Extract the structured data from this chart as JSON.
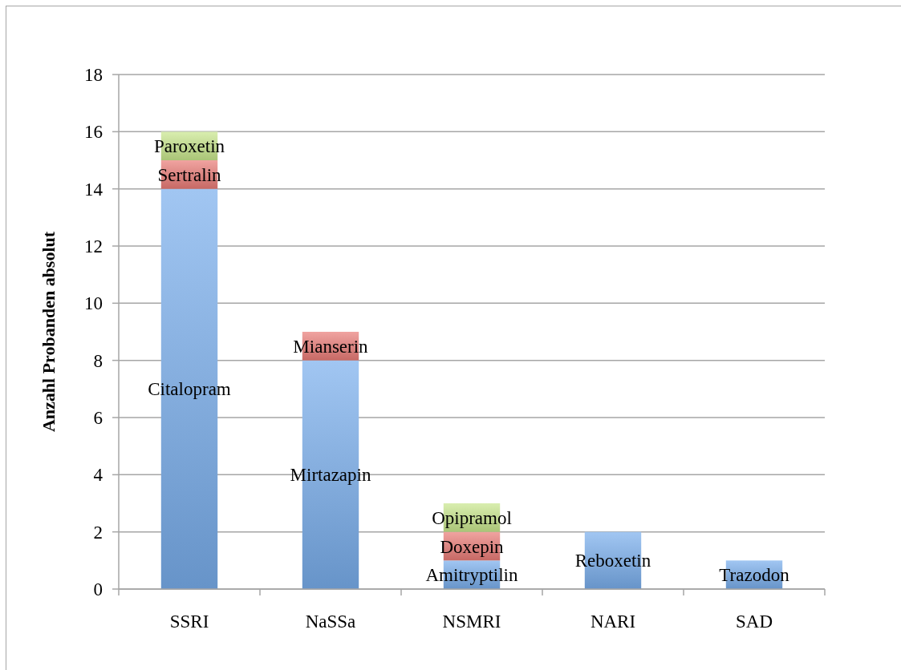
{
  "chart_data": {
    "type": "bar",
    "stacked": true,
    "ylabel": "Anzahl Probanden absolut",
    "categories": [
      "SSRI",
      "NaSSa",
      "NSMRI",
      "NARI",
      "SAD"
    ],
    "series": [
      {
        "color": "#79aeed",
        "values": [
          14,
          8,
          1,
          2,
          1
        ],
        "value_labels": [
          "Citalopram",
          "Mirtazapin",
          "Amitryptilin",
          "Reboxetin",
          "Trazodon"
        ]
      },
      {
        "color": "#ea7b77",
        "values": [
          1,
          1,
          1,
          null,
          null
        ],
        "value_labels": [
          "Sertralin",
          "Mianserin",
          "Doxepin",
          null,
          null
        ]
      },
      {
        "color": "#c8e68c",
        "values": [
          1,
          null,
          1,
          null,
          null
        ],
        "value_labels": [
          "Paroxetin",
          null,
          "Opipramol",
          null,
          null
        ]
      }
    ],
    "ylim": [
      0,
      18
    ],
    "yticks": [
      0,
      2,
      4,
      6,
      8,
      10,
      12,
      14,
      16,
      18
    ],
    "grid": "y"
  }
}
